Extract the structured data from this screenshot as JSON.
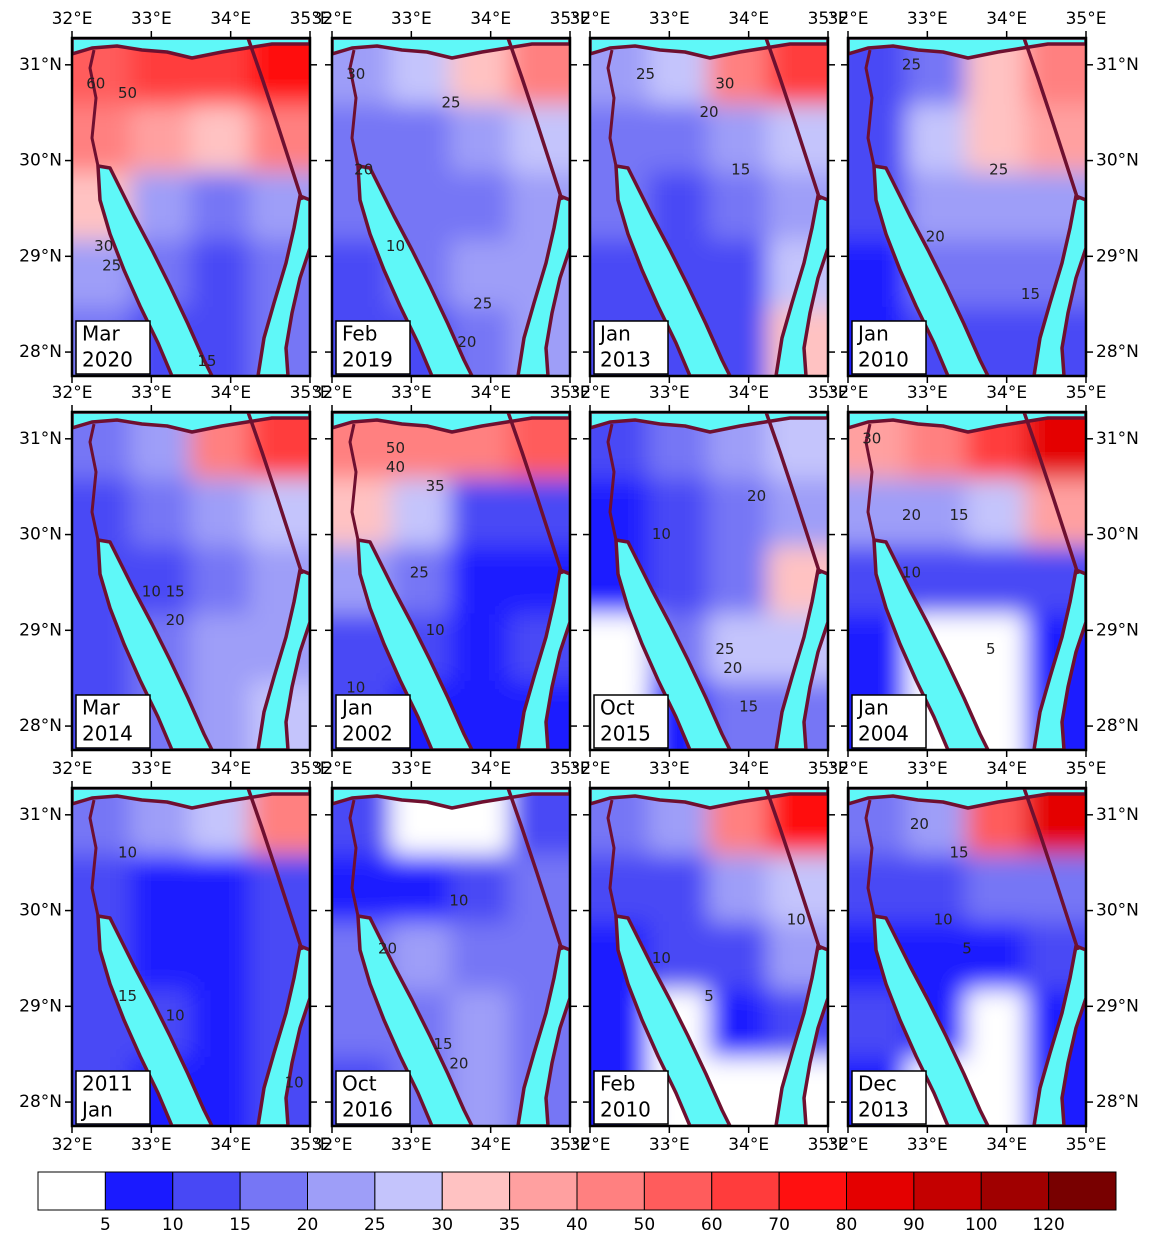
{
  "xlim": [
    32,
    35
  ],
  "ylim": [
    27.75,
    31.28
  ],
  "xticks": [
    {
      "value": 32,
      "label": "32°E"
    },
    {
      "value": 33,
      "label": "33°E"
    },
    {
      "value": 34,
      "label": "34°E"
    },
    {
      "value": 35,
      "label": "35°E"
    }
  ],
  "yticks": [
    {
      "value": 28,
      "label": "28°N"
    },
    {
      "value": 29,
      "label": "29°N"
    },
    {
      "value": 30,
      "label": "30°N"
    },
    {
      "value": 31,
      "label": "31°N"
    }
  ],
  "colorbar": {
    "levels": [
      5,
      10,
      15,
      20,
      25,
      30,
      35,
      40,
      50,
      60,
      70,
      80,
      90,
      100,
      120
    ],
    "colors": [
      "#ffffff",
      "#1a1aff",
      "#4848f5",
      "#7676f5",
      "#9e9ef8",
      "#c4c4fc",
      "#ffc2c2",
      "#ffa0a0",
      "#ff8080",
      "#ff5c5c",
      "#ff3c3c",
      "#ff1010",
      "#e40000",
      "#c40000",
      "#a00000",
      "#780000"
    ]
  },
  "panels": [
    {
      "label": [
        "Mar",
        "2020"
      ],
      "field": [
        [
          55,
          60,
          65,
          75
        ],
        [
          40,
          35,
          30,
          40
        ],
        [
          30,
          20,
          18,
          22
        ],
        [
          22,
          15,
          14,
          18
        ],
        [
          15,
          12,
          12,
          15
        ]
      ],
      "contour_labels": [
        {
          "value": 60,
          "lon": 32.3,
          "lat": 30.8
        },
        {
          "value": 50,
          "lon": 32.7,
          "lat": 30.7
        },
        {
          "value": 30,
          "lon": 32.4,
          "lat": 29.1
        },
        {
          "value": 25,
          "lon": 32.5,
          "lat": 28.9
        },
        {
          "value": 15,
          "lon": 33.7,
          "lat": 27.9
        }
      ]
    },
    {
      "label": [
        "Feb",
        "2019"
      ],
      "field": [
        [
          22,
          25,
          30,
          40
        ],
        [
          18,
          15,
          22,
          28
        ],
        [
          15,
          15,
          18,
          24
        ],
        [
          12,
          15,
          20,
          22
        ],
        [
          10,
          12,
          18,
          22
        ]
      ],
      "contour_labels": [
        {
          "value": 30,
          "lon": 32.3,
          "lat": 30.9
        },
        {
          "value": 25,
          "lon": 33.5,
          "lat": 30.6
        },
        {
          "value": 20,
          "lon": 32.4,
          "lat": 29.9
        },
        {
          "value": 10,
          "lon": 32.8,
          "lat": 29.1
        },
        {
          "value": 25,
          "lon": 33.9,
          "lat": 28.5
        },
        {
          "value": 20,
          "lon": 33.7,
          "lat": 28.1
        }
      ]
    },
    {
      "label": [
        "Jan",
        "2013"
      ],
      "field": [
        [
          20,
          25,
          45,
          60
        ],
        [
          15,
          18,
          22,
          28
        ],
        [
          15,
          14,
          16,
          20
        ],
        [
          14,
          12,
          14,
          25
        ],
        [
          10,
          10,
          12,
          30
        ]
      ],
      "contour_labels": [
        {
          "value": 25,
          "lon": 32.7,
          "lat": 30.9
        },
        {
          "value": 30,
          "lon": 33.7,
          "lat": 30.8
        },
        {
          "value": 20,
          "lon": 33.5,
          "lat": 30.5
        },
        {
          "value": 15,
          "lon": 33.9,
          "lat": 29.9
        }
      ]
    },
    {
      "label": [
        "Jan",
        "2010"
      ],
      "field": [
        [
          10,
          15,
          30,
          45
        ],
        [
          12,
          25,
          30,
          35
        ],
        [
          10,
          20,
          22,
          22
        ],
        [
          8,
          15,
          15,
          18
        ],
        [
          8,
          12,
          10,
          12
        ]
      ],
      "contour_labels": [
        {
          "value": 25,
          "lon": 32.8,
          "lat": 31.0
        },
        {
          "value": 25,
          "lon": 33.9,
          "lat": 29.9
        },
        {
          "value": 20,
          "lon": 33.1,
          "lat": 29.2
        },
        {
          "value": 15,
          "lon": 34.3,
          "lat": 28.6
        }
      ]
    },
    {
      "label": [
        "Mar",
        "2014"
      ],
      "field": [
        [
          15,
          20,
          40,
          60
        ],
        [
          10,
          15,
          20,
          28
        ],
        [
          10,
          12,
          18,
          22
        ],
        [
          10,
          15,
          20,
          22
        ],
        [
          10,
          15,
          22,
          25
        ]
      ],
      "contour_labels": [
        {
          "value": 10,
          "lon": 33.0,
          "lat": 29.4
        },
        {
          "value": 15,
          "lon": 33.3,
          "lat": 29.4
        },
        {
          "value": 20,
          "lon": 33.3,
          "lat": 29.1
        }
      ]
    },
    {
      "label": [
        "Jan",
        "2002"
      ],
      "field": [
        [
          45,
          45,
          40,
          50
        ],
        [
          30,
          25,
          12,
          10
        ],
        [
          20,
          15,
          8,
          8
        ],
        [
          12,
          10,
          8,
          10
        ],
        [
          10,
          8,
          6,
          8
        ]
      ],
      "contour_labels": [
        {
          "value": 50,
          "lon": 32.8,
          "lat": 30.9
        },
        {
          "value": 40,
          "lon": 32.8,
          "lat": 30.7
        },
        {
          "value": 35,
          "lon": 33.3,
          "lat": 30.5
        },
        {
          "value": 25,
          "lon": 33.1,
          "lat": 29.6
        },
        {
          "value": 10,
          "lon": 33.3,
          "lat": 29.0
        },
        {
          "value": 10,
          "lon": 32.3,
          "lat": 28.4
        }
      ]
    },
    {
      "label": [
        "Oct",
        "2015"
      ],
      "field": [
        [
          10,
          15,
          20,
          28
        ],
        [
          8,
          12,
          15,
          20
        ],
        [
          6,
          10,
          18,
          30
        ],
        [
          4,
          15,
          25,
          25
        ],
        [
          4,
          8,
          15,
          15
        ]
      ],
      "contour_labels": [
        {
          "value": 20,
          "lon": 34.1,
          "lat": 30.4
        },
        {
          "value": 10,
          "lon": 32.9,
          "lat": 30.0
        },
        {
          "value": 25,
          "lon": 33.7,
          "lat": 28.8
        },
        {
          "value": 20,
          "lon": 33.8,
          "lat": 28.6
        },
        {
          "value": 15,
          "lon": 34.0,
          "lat": 28.2
        }
      ]
    },
    {
      "label": [
        "Jan",
        "2004"
      ],
      "field": [
        [
          35,
          40,
          60,
          80
        ],
        [
          20,
          20,
          25,
          35
        ],
        [
          12,
          10,
          10,
          12
        ],
        [
          8,
          4,
          4,
          8
        ],
        [
          8,
          4,
          4,
          8
        ]
      ],
      "contour_labels": [
        {
          "value": 30,
          "lon": 32.3,
          "lat": 31.0
        },
        {
          "value": 20,
          "lon": 32.8,
          "lat": 30.2
        },
        {
          "value": 15,
          "lon": 33.4,
          "lat": 30.2
        },
        {
          "value": 10,
          "lon": 32.8,
          "lat": 29.6
        },
        {
          "value": 5,
          "lon": 33.8,
          "lat": 28.8
        }
      ]
    },
    {
      "label": [
        "2011",
        "Jan"
      ],
      "field": [
        [
          15,
          20,
          25,
          45
        ],
        [
          10,
          8,
          6,
          10
        ],
        [
          12,
          8,
          6,
          12
        ],
        [
          10,
          10,
          8,
          12
        ],
        [
          10,
          8,
          8,
          10
        ]
      ],
      "contour_labels": [
        {
          "value": 10,
          "lon": 32.7,
          "lat": 30.6
        },
        {
          "value": 15,
          "lon": 32.7,
          "lat": 29.1
        },
        {
          "value": 10,
          "lon": 33.3,
          "lat": 28.9
        },
        {
          "value": 10,
          "lon": 34.8,
          "lat": 28.2
        }
      ]
    },
    {
      "label": [
        "Oct",
        "2016"
      ],
      "field": [
        [
          10,
          4,
          4,
          10
        ],
        [
          8,
          6,
          10,
          15
        ],
        [
          18,
          20,
          18,
          15
        ],
        [
          15,
          18,
          20,
          15
        ],
        [
          12,
          15,
          20,
          18
        ]
      ],
      "contour_labels": [
        {
          "value": 10,
          "lon": 33.6,
          "lat": 30.1
        },
        {
          "value": 20,
          "lon": 32.7,
          "lat": 29.6
        },
        {
          "value": 15,
          "lon": 33.4,
          "lat": 28.6
        },
        {
          "value": 20,
          "lon": 33.6,
          "lat": 28.4
        }
      ]
    },
    {
      "label": [
        "Feb",
        "2010"
      ],
      "field": [
        [
          15,
          20,
          40,
          70
        ],
        [
          10,
          12,
          22,
          25
        ],
        [
          8,
          10,
          12,
          20
        ],
        [
          6,
          4,
          6,
          10
        ],
        [
          6,
          4,
          4,
          4
        ]
      ],
      "contour_labels": [
        {
          "value": 10,
          "lon": 32.9,
          "lat": 29.5
        },
        {
          "value": 5,
          "lon": 33.5,
          "lat": 29.1
        },
        {
          "value": 10,
          "lon": 34.6,
          "lat": 29.9
        }
      ]
    },
    {
      "label": [
        "Dec",
        "2013"
      ],
      "field": [
        [
          15,
          20,
          50,
          80
        ],
        [
          10,
          12,
          15,
          15
        ],
        [
          8,
          6,
          8,
          10
        ],
        [
          10,
          6,
          4,
          6
        ],
        [
          8,
          4,
          4,
          6
        ]
      ],
      "contour_labels": [
        {
          "value": 20,
          "lon": 32.9,
          "lat": 30.9
        },
        {
          "value": 15,
          "lon": 33.4,
          "lat": 30.6
        },
        {
          "value": 10,
          "lon": 33.2,
          "lat": 29.9
        },
        {
          "value": 5,
          "lon": 33.5,
          "lat": 29.6
        }
      ]
    }
  ]
}
